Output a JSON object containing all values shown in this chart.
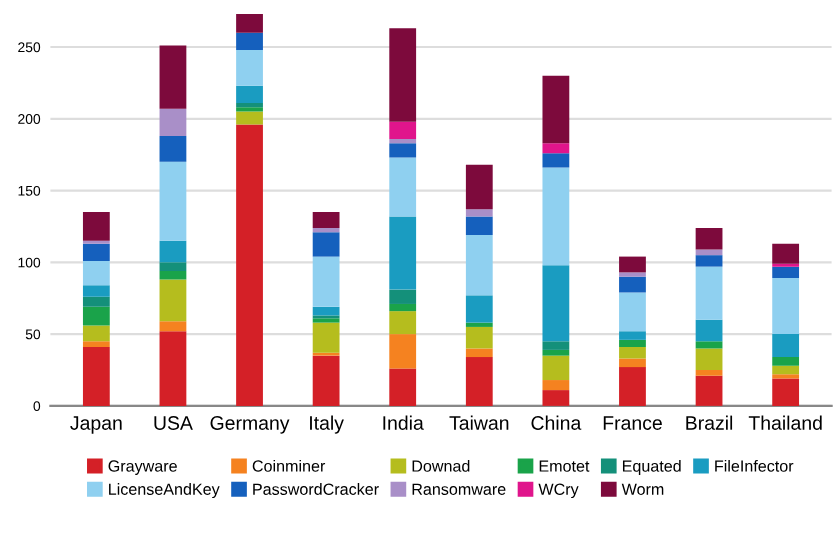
{
  "chart_data": {
    "type": "bar",
    "stacked": true,
    "categories": [
      "Japan",
      "USA",
      "Germany",
      "Italy",
      "India",
      "Taiwan",
      "China",
      "France",
      "Brazil",
      "Thailand"
    ],
    "series": [
      {
        "name": "Grayware",
        "color": "#d42027",
        "values": [
          41,
          52,
          196,
          35,
          26,
          34,
          11,
          27,
          21,
          19
        ]
      },
      {
        "name": "Coinminer",
        "color": "#f58220",
        "values": [
          4,
          7,
          0,
          2,
          24,
          6,
          7,
          6,
          4,
          3
        ]
      },
      {
        "name": "Downad",
        "color": "#b5bd1e",
        "values": [
          11,
          29,
          9,
          21,
          16,
          15,
          17,
          8,
          15,
          6
        ]
      },
      {
        "name": "Emotet",
        "color": "#1aa34a",
        "values": [
          13,
          6,
          3,
          3,
          5,
          3,
          4,
          5,
          5,
          6
        ]
      },
      {
        "name": "Equated",
        "color": "#14907a",
        "values": [
          7,
          6,
          3,
          2,
          10,
          0,
          6,
          0,
          0,
          0
        ]
      },
      {
        "name": "FileInfector",
        "color": "#1a9cc1",
        "values": [
          8,
          15,
          12,
          6,
          51,
          19,
          53,
          6,
          15,
          16
        ]
      },
      {
        "name": "LicenseAndKey",
        "color": "#8fd0f0",
        "values": [
          17,
          55,
          25,
          35,
          41,
          42,
          68,
          27,
          37,
          39
        ]
      },
      {
        "name": "PasswordCracker",
        "color": "#1560bd",
        "values": [
          12,
          18,
          12,
          17,
          10,
          13,
          10,
          11,
          8,
          8
        ]
      },
      {
        "name": "Ransomware",
        "color": "#a98fc8",
        "values": [
          2,
          19,
          0,
          3,
          3,
          5,
          0,
          3,
          4,
          0
        ]
      },
      {
        "name": "WCry",
        "color": "#e0158c",
        "values": [
          0,
          0,
          0,
          0,
          12,
          0,
          7,
          0,
          0,
          2
        ]
      },
      {
        "name": "Worm",
        "color": "#7d0a3c",
        "values": [
          20,
          44,
          13,
          11,
          65,
          31,
          47,
          11,
          15,
          14
        ]
      }
    ],
    "ylim": [
      0,
      275
    ],
    "yticks": [
      0,
      50,
      100,
      150,
      200,
      250
    ],
    "grid": "y",
    "legend": "bottom"
  }
}
